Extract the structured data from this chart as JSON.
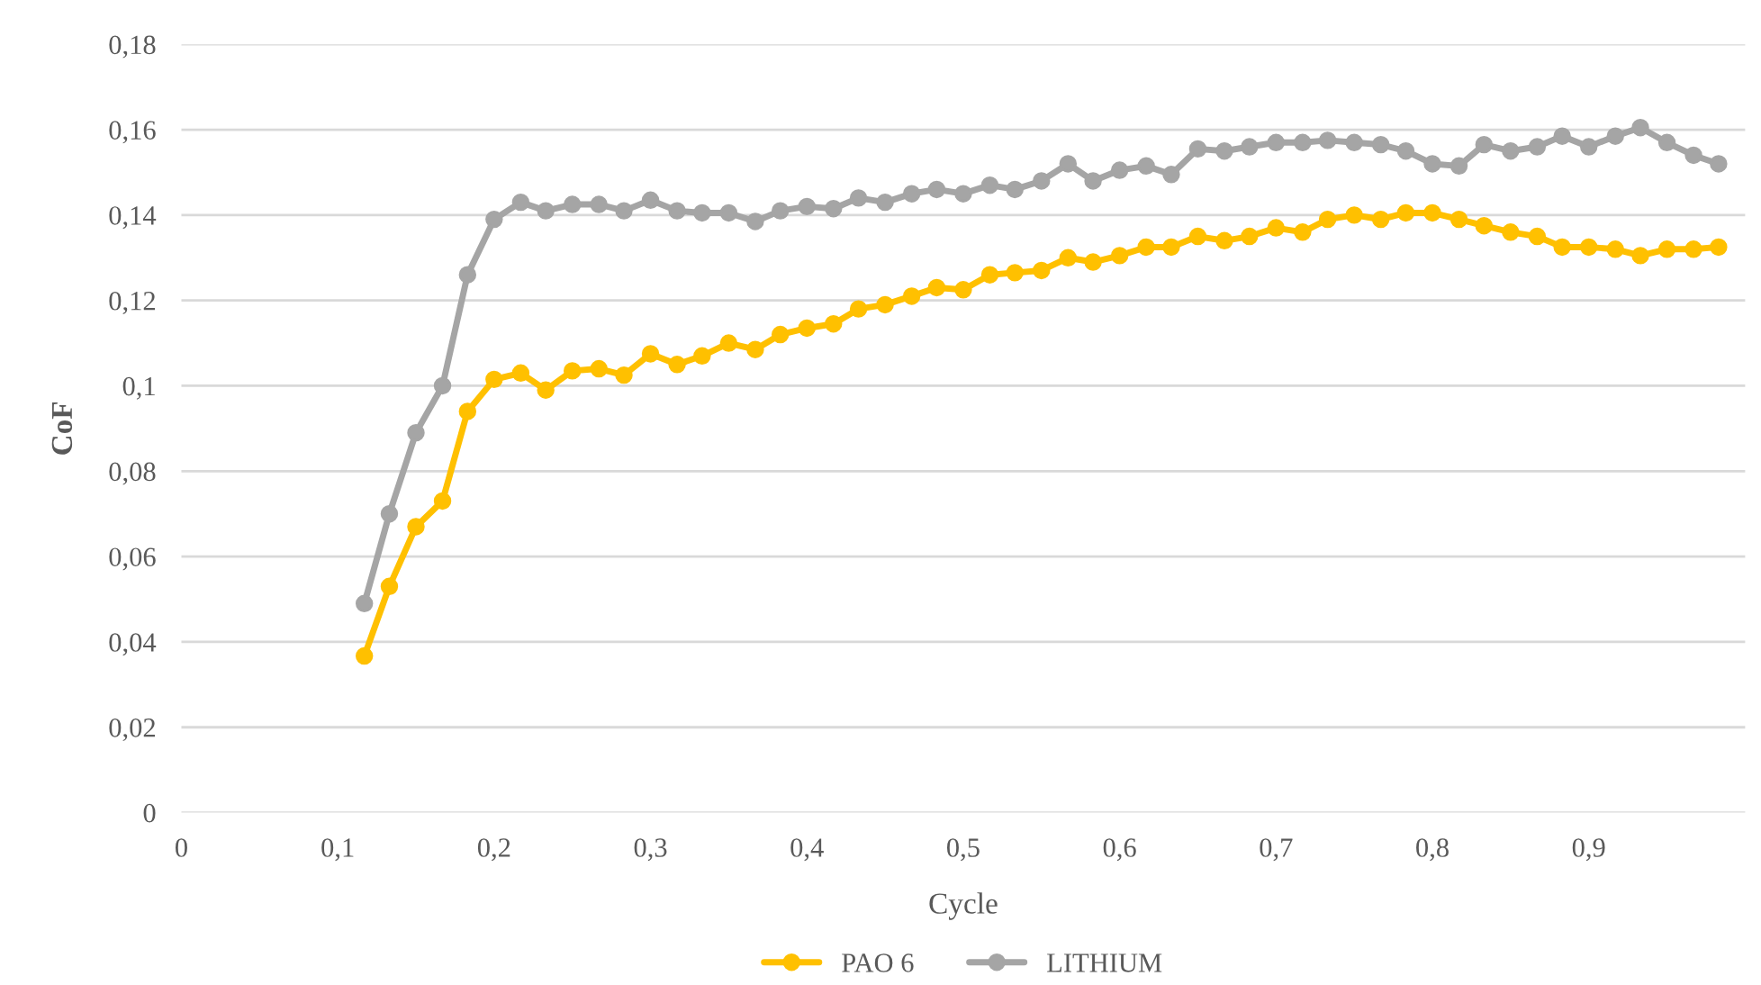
{
  "chart_data": {
    "type": "line",
    "xlabel": "Cycle",
    "ylabel": "CoF",
    "xlim": [
      0,
      1.0
    ],
    "ylim": [
      0,
      0.18
    ],
    "xticks": [
      0,
      {
        "value": 0.1,
        "label": "0,1"
      },
      {
        "value": 0.2,
        "label": "0,2"
      },
      {
        "value": 0.3,
        "label": "0,3"
      },
      {
        "value": 0.4,
        "label": "0,4"
      },
      {
        "value": 0.5,
        "label": "0,5"
      },
      {
        "value": 0.6,
        "label": "0,6"
      },
      {
        "value": 0.7,
        "label": "0,7"
      },
      {
        "value": 0.8,
        "label": "0,8"
      },
      {
        "value": 0.9,
        "label": "0,9"
      }
    ],
    "yticks": [
      0,
      {
        "value": 0.02,
        "label": "0,02"
      },
      {
        "value": 0.04,
        "label": "0,04"
      },
      {
        "value": 0.06,
        "label": "0,06"
      },
      {
        "value": 0.08,
        "label": "0,08"
      },
      {
        "value": 0.1,
        "label": "0,1"
      },
      {
        "value": 0.12,
        "label": "0,12"
      },
      {
        "value": 0.14,
        "label": "0,14"
      },
      {
        "value": 0.16,
        "label": "0,16"
      },
      {
        "value": 0.18,
        "label": "0,18"
      }
    ],
    "x": [
      0.117,
      0.133,
      0.15,
      0.167,
      0.183,
      0.2,
      0.217,
      0.233,
      0.25,
      0.267,
      0.283,
      0.3,
      0.317,
      0.333,
      0.35,
      0.367,
      0.383,
      0.4,
      0.417,
      0.433,
      0.45,
      0.467,
      0.483,
      0.5,
      0.517,
      0.533,
      0.55,
      0.567,
      0.583,
      0.6,
      0.617,
      0.633,
      0.65,
      0.667,
      0.683,
      0.7,
      0.717,
      0.733,
      0.75,
      0.767,
      0.783,
      0.8,
      0.817,
      0.833,
      0.85,
      0.867,
      0.883,
      0.9,
      0.917,
      0.933,
      0.95,
      0.967,
      0.983
    ],
    "series": [
      {
        "name": "PAO 6",
        "color": "#ffc000",
        "values": [
          0.0367,
          0.053,
          0.067,
          0.073,
          0.094,
          0.1015,
          0.103,
          0.099,
          0.1035,
          0.104,
          0.1025,
          0.1075,
          0.105,
          0.107,
          0.11,
          0.1085,
          0.112,
          0.1135,
          0.1145,
          0.118,
          0.119,
          0.121,
          0.123,
          0.1225,
          0.126,
          0.1265,
          0.127,
          0.13,
          0.129,
          0.1305,
          0.1325,
          0.1325,
          0.135,
          0.134,
          0.135,
          0.137,
          0.136,
          0.139,
          0.14,
          0.139,
          0.1405,
          0.1405,
          0.139,
          0.1375,
          0.136,
          0.135,
          0.1325,
          0.1325,
          0.132,
          0.1305,
          0.132,
          0.132,
          0.1325
        ]
      },
      {
        "name": "LITHIUM",
        "color": "#a5a5a5",
        "values": [
          0.049,
          0.07,
          0.089,
          0.1,
          0.126,
          0.139,
          0.143,
          0.141,
          0.1425,
          0.1425,
          0.141,
          0.1435,
          0.141,
          0.1405,
          0.1405,
          0.1385,
          0.141,
          0.142,
          0.1415,
          0.144,
          0.143,
          0.145,
          0.146,
          0.145,
          0.147,
          0.146,
          0.148,
          0.152,
          0.148,
          0.1505,
          0.1515,
          0.1495,
          0.1555,
          0.155,
          0.156,
          0.157,
          0.157,
          0.1575,
          0.157,
          0.1565,
          0.155,
          0.152,
          0.1515,
          0.1565,
          0.155,
          0.156,
          0.1585,
          0.156,
          0.1585,
          0.1605,
          0.157,
          0.154,
          0.152
        ]
      }
    ],
    "grid": "y",
    "legend": "bottom",
    "marker": "circle",
    "line_style": "solid"
  }
}
